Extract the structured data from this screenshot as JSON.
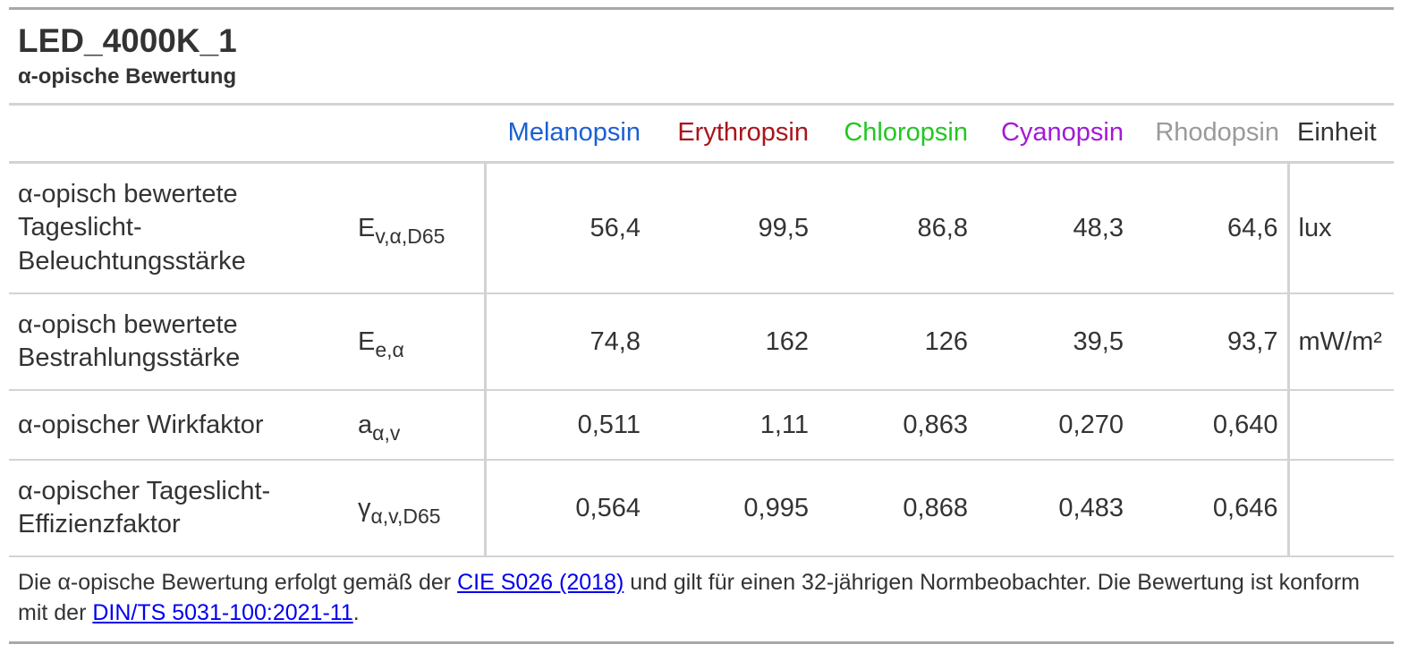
{
  "header": {
    "title": "LED_4000K_1",
    "subtitle": "α-opische Bewertung"
  },
  "columns": [
    {
      "label": "Melanopsin",
      "color": "#1a5fd6"
    },
    {
      "label": "Erythropsin",
      "color": "#a8151b"
    },
    {
      "label": "Chloropsin",
      "color": "#22c722"
    },
    {
      "label": "Cyanopsin",
      "color": "#a21ad6"
    },
    {
      "label": "Rhodopsin",
      "color": "#9a9a9a"
    }
  ],
  "unit_header": "Einheit",
  "rows": [
    {
      "label": "α-opisch bewertete Tageslicht-Beleuchtungsstärke",
      "symbol_base": "E",
      "symbol_sub": "v,α,D65",
      "values": [
        "56,4",
        "99,5",
        "86,8",
        "48,3",
        "64,6"
      ],
      "unit": "lux"
    },
    {
      "label": "α-opisch bewertete Bestrahlungsstärke",
      "symbol_base": "E",
      "symbol_sub": "e,α",
      "values": [
        "74,8",
        "162",
        "126",
        "39,5",
        "93,7"
      ],
      "unit": "mW/m²"
    },
    {
      "label": "α-opischer Wirkfaktor",
      "symbol_base": "a",
      "symbol_sub": "α,v",
      "values": [
        "0,511",
        "1,11",
        "0,863",
        "0,270",
        "0,640"
      ],
      "unit": ""
    },
    {
      "label": "α-opischer Tageslicht-Effizienzfaktor",
      "symbol_base": "γ",
      "symbol_sub": "α,v,D65",
      "values": [
        "0,564",
        "0,995",
        "0,868",
        "0,483",
        "0,646"
      ],
      "unit": ""
    }
  ],
  "footnote": {
    "text_1": "Die α-opische Bewertung erfolgt gemäß der ",
    "link_1": "CIE S026 (2018)",
    "text_2": " und gilt für einen 32-jährigen Normbeobachter. Die Bewertung ist konform mit der ",
    "link_2": "DIN/TS 5031-100:2021-11",
    "text_3": "."
  }
}
